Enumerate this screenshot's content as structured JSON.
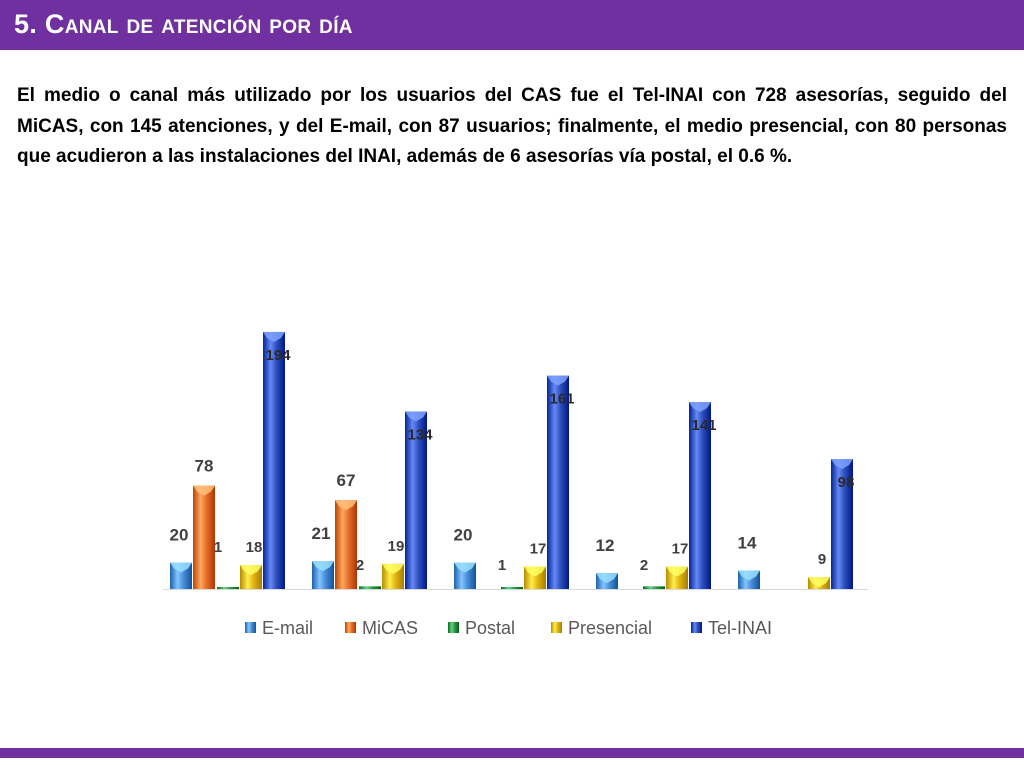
{
  "header": {
    "title": "5. Canal de atención por día"
  },
  "intro": {
    "text": "El medio o canal más utilizado por los usuarios del CAS fue el Tel-INAI con 728 asesorías, seguido del MiCAS, con 145 atenciones, y del E-mail, con 87 usuarios; finalmente, el medio presencial, con 80 personas que acudieron a las instalaciones del INAI, además de 6 asesorías vía postal, el 0.6 %."
  },
  "chart_data": {
    "type": "bar",
    "categories": [
      "",
      "",
      "",
      "",
      ""
    ],
    "series": [
      {
        "name": "E-mail",
        "color": "#4a8fd8",
        "values": [
          20,
          21,
          20,
          12,
          14
        ]
      },
      {
        "name": "MiCAS",
        "color": "#e8712a",
        "values": [
          78,
          67,
          null,
          null,
          null
        ]
      },
      {
        "name": "Postal",
        "color": "#2e9a4c",
        "values": [
          1,
          2,
          1,
          2,
          null
        ]
      },
      {
        "name": "Presencial",
        "color": "#e3b814",
        "values": [
          18,
          19,
          17,
          17,
          9
        ]
      },
      {
        "name": "Tel-INAI",
        "color": "#2f52c0",
        "values": [
          194,
          134,
          161,
          141,
          98
        ]
      }
    ],
    "title": "",
    "xlabel": "",
    "ylabel": "",
    "ylim": [
      0,
      200
    ],
    "grid": false,
    "legend": "bottom"
  }
}
